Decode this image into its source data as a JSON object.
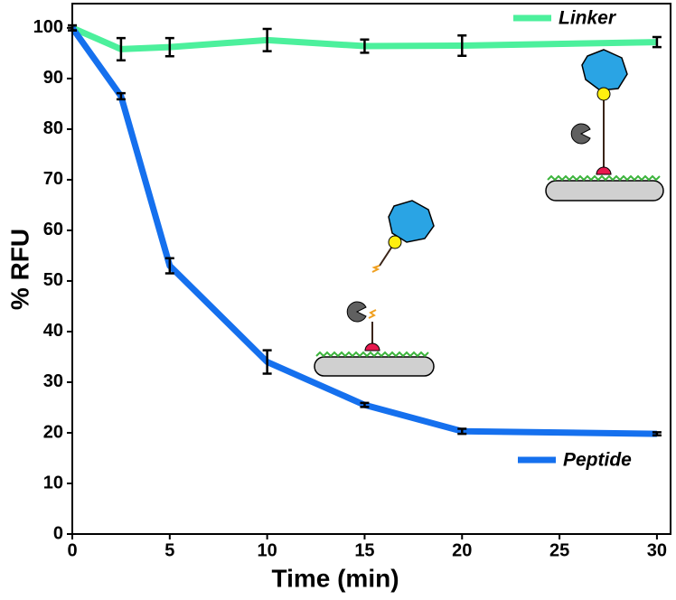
{
  "chart_data": {
    "type": "line",
    "x_label": "Time (min)",
    "y_label": "% RFU",
    "x": [
      0,
      2.5,
      5,
      10,
      15,
      20,
      30
    ],
    "series": [
      {
        "name": "Linker",
        "color": "#4cf09c",
        "values": [
          100,
          95.8,
          96.2,
          97.6,
          96.4,
          96.5,
          97.2
        ],
        "errors": [
          0.5,
          2.2,
          1.8,
          2.2,
          1.3,
          2.0,
          1.0
        ]
      },
      {
        "name": "Peptide",
        "color": "#1570ee",
        "values": [
          100,
          86.5,
          53,
          34,
          25.5,
          20.3,
          19.8
        ],
        "errors": [
          0.5,
          0.6,
          1.5,
          2.3,
          0.4,
          0.5,
          0.3
        ]
      }
    ],
    "xlim": [
      0,
      30.7
    ],
    "ylim": [
      0,
      104.8
    ],
    "xticks": [
      0,
      5,
      10,
      15,
      20,
      25,
      30
    ],
    "yticks": [
      0,
      10,
      20,
      30,
      40,
      50,
      60,
      70,
      80,
      90,
      100
    ],
    "grid": false
  }
}
